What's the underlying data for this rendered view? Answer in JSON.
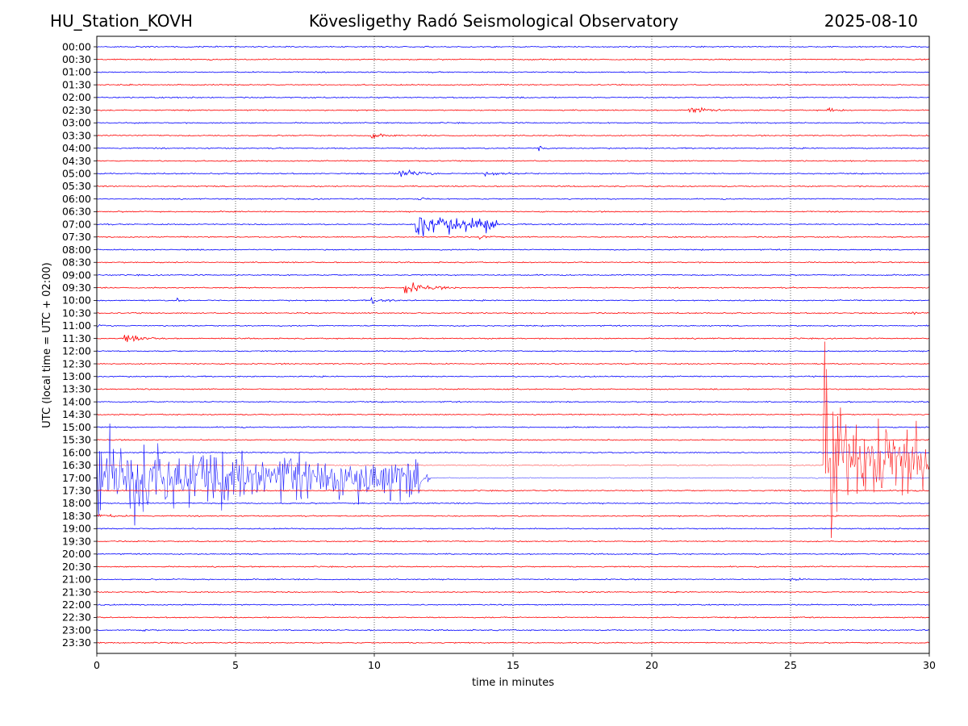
{
  "header": {
    "station": "HU_Station_KOVH",
    "title": "Kövesligethy Radó Seismological Observatory",
    "date": "2025-08-10"
  },
  "chart_data": {
    "type": "line",
    "title": "Kövesligethy Radó Seismological Observatory",
    "xlabel": "time in minutes",
    "ylabel": "UTC (local time = UTC + 02:00)",
    "xlim": [
      0,
      30
    ],
    "x_ticks": [
      "0",
      "5",
      "10",
      "15",
      "20",
      "25",
      "30"
    ],
    "grid": "vertical dotted lines at x = 5, 10, 15, 20, 25",
    "trace_colors": [
      "#0000ff",
      "#ff0000"
    ],
    "rows": [
      "00:00",
      "00:30",
      "01:00",
      "01:30",
      "02:00",
      "02:30",
      "03:00",
      "03:30",
      "04:00",
      "04:30",
      "05:00",
      "05:30",
      "06:00",
      "06:30",
      "07:00",
      "07:30",
      "08:00",
      "08:30",
      "09:00",
      "09:30",
      "10:00",
      "10:30",
      "11:00",
      "11:30",
      "12:00",
      "12:30",
      "13:00",
      "13:30",
      "14:00",
      "14:30",
      "15:00",
      "15:30",
      "16:00",
      "16:30",
      "17:00",
      "17:30",
      "18:00",
      "18:30",
      "19:00",
      "19:30",
      "20:00",
      "20:30",
      "21:00",
      "21:30",
      "22:00",
      "22:30",
      "23:00",
      "23:30"
    ],
    "events": [
      {
        "row": "02:30",
        "start_min": 21.3,
        "duration_min": 1.2,
        "amplitude_rows": 0.7
      },
      {
        "row": "02:30",
        "start_min": 26.3,
        "duration_min": 0.8,
        "amplitude_rows": 0.4
      },
      {
        "row": "03:30",
        "start_min": 9.9,
        "duration_min": 1.0,
        "amplitude_rows": 0.3
      },
      {
        "row": "04:00",
        "start_min": 15.9,
        "duration_min": 0.6,
        "amplitude_rows": 0.4
      },
      {
        "row": "05:00",
        "start_min": 10.9,
        "duration_min": 1.5,
        "amplitude_rows": 0.9
      },
      {
        "row": "05:00",
        "start_min": 14.0,
        "duration_min": 2.0,
        "amplitude_rows": 0.2
      },
      {
        "row": "06:00",
        "start_min": 11.6,
        "duration_min": 0.6,
        "amplitude_rows": 0.3
      },
      {
        "row": "07:00",
        "start_min": 11.5,
        "duration_min": 3.0,
        "amplitude_rows": 2.0
      },
      {
        "row": "07:30",
        "start_min": 13.8,
        "duration_min": 1.0,
        "amplitude_rows": 0.3
      },
      {
        "row": "09:30",
        "start_min": 11.1,
        "duration_min": 2.0,
        "amplitude_rows": 0.8
      },
      {
        "row": "10:00",
        "start_min": 9.9,
        "duration_min": 1.0,
        "amplitude_rows": 0.5
      },
      {
        "row": "10:00",
        "start_min": 2.9,
        "duration_min": 0.4,
        "amplitude_rows": 0.3
      },
      {
        "row": "10:30",
        "start_min": 29.4,
        "duration_min": 0.6,
        "amplitude_rows": 0.4
      },
      {
        "row": "11:00",
        "start_min": 0.0,
        "duration_min": 0.6,
        "amplitude_rows": 0.2
      },
      {
        "row": "11:30",
        "start_min": 1.0,
        "duration_min": 1.6,
        "amplitude_rows": 0.6
      },
      {
        "row": "17:00",
        "start_min": 0.0,
        "duration_min": 12.0,
        "amplitude_rows": 7.0
      },
      {
        "row": "16:30",
        "start_min": 26.2,
        "duration_min": 3.8,
        "amplitude_rows": 13.5
      },
      {
        "row": "18:30",
        "start_min": 0.0,
        "duration_min": 1.4,
        "amplitude_rows": 0.3
      },
      {
        "row": "21:00",
        "start_min": 25.0,
        "duration_min": 0.6,
        "amplitude_rows": 0.3
      },
      {
        "row": "23:00",
        "start_min": 1.6,
        "duration_min": 0.6,
        "amplitude_rows": 0.2
      }
    ]
  }
}
